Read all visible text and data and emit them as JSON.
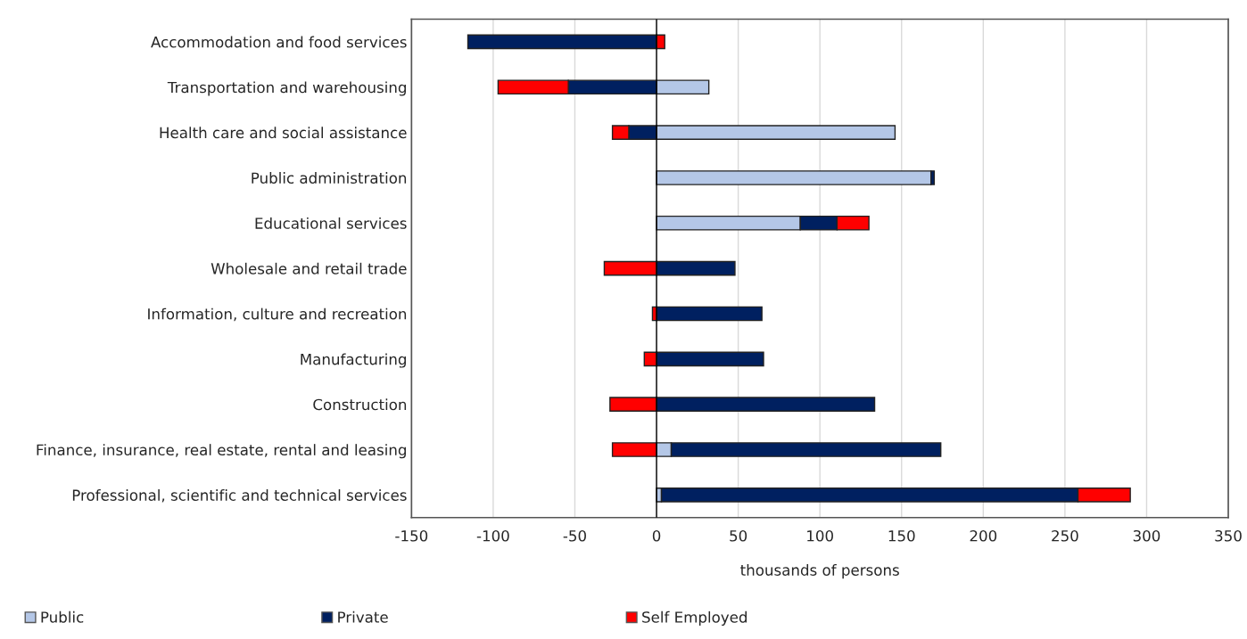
{
  "chart_data": {
    "type": "bar",
    "orientation": "horizontal",
    "stacked": true,
    "categories": [
      "Accommodation and food services",
      "Transportation and warehousing",
      "Health care and social assistance",
      "Public administration",
      "Educational services",
      "Wholesale and retail trade",
      "Information, culture and recreation",
      "Manufacturing",
      "Construction",
      "Finance, insurance, real estate, rental and leasing",
      "Professional, scientific and technical services"
    ],
    "series": [
      {
        "name": "Public",
        "color": "#b4c7e7",
        "values": [
          0,
          32,
          146,
          168,
          88,
          null,
          null,
          0,
          0,
          9,
          3
        ]
      },
      {
        "name": "Private",
        "color": "#002060",
        "values": [
          -115.5,
          -54,
          -17,
          2,
          22.5,
          48,
          64.5,
          65.5,
          133.5,
          165,
          255
        ]
      },
      {
        "name": "Self Employed",
        "color": "#ff0000",
        "values": [
          5,
          -43,
          -10,
          0,
          19.5,
          -32,
          -2.5,
          -7.5,
          -28.5,
          -27,
          32
        ]
      }
    ],
    "xlabel": "thousands of persons",
    "xlim": [
      -150,
      350
    ],
    "xticks": [
      -150,
      -100,
      -50,
      0,
      50,
      100,
      150,
      200,
      250,
      300,
      350
    ],
    "grid": "x",
    "legend": "bottom"
  }
}
